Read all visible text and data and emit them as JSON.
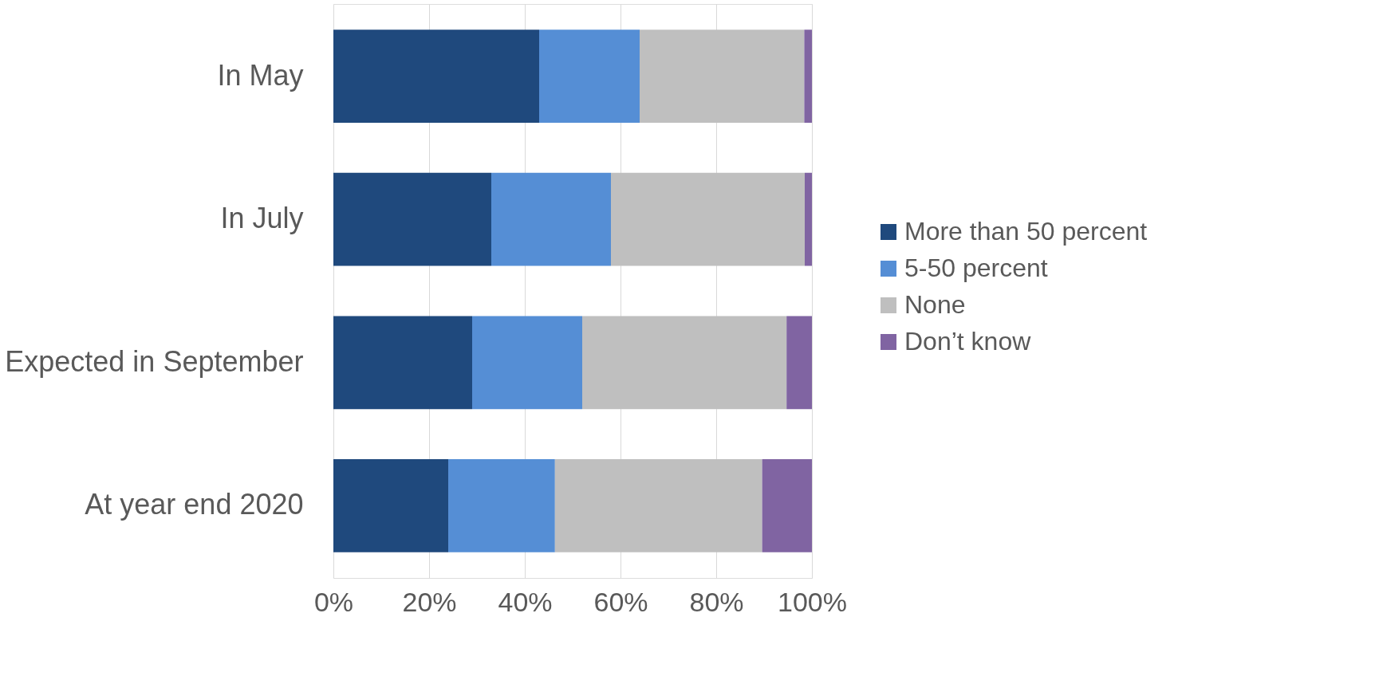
{
  "chart_data": {
    "type": "bar",
    "orientation": "horizontal",
    "stacked": true,
    "categories": [
      "In May",
      "In July",
      "Expected in September",
      "At year end 2020"
    ],
    "series": [
      {
        "name": "More than 50 percent",
        "color": "#1f497d",
        "values": [
          43,
          33,
          29,
          24
        ]
      },
      {
        "name": "5-50 percent",
        "color": "#558ed5",
        "values": [
          21,
          25,
          23,
          22.3
        ]
      },
      {
        "name": "None",
        "color": "#bfbfbf",
        "values": [
          34.4,
          40.5,
          42.7,
          43.3
        ]
      },
      {
        "name": "Don’t know",
        "color": "#8064a2",
        "values": [
          1.6,
          1.5,
          5.3,
          10.4
        ]
      }
    ],
    "xlim": [
      0,
      100
    ],
    "xticks": [
      {
        "value": 0,
        "label": "0%"
      },
      {
        "value": 20,
        "label": "20%"
      },
      {
        "value": 40,
        "label": "40%"
      },
      {
        "value": 60,
        "label": "60%"
      },
      {
        "value": 80,
        "label": "80%"
      },
      {
        "value": 100,
        "label": "100%"
      }
    ],
    "grid": "x",
    "legend": "right"
  }
}
